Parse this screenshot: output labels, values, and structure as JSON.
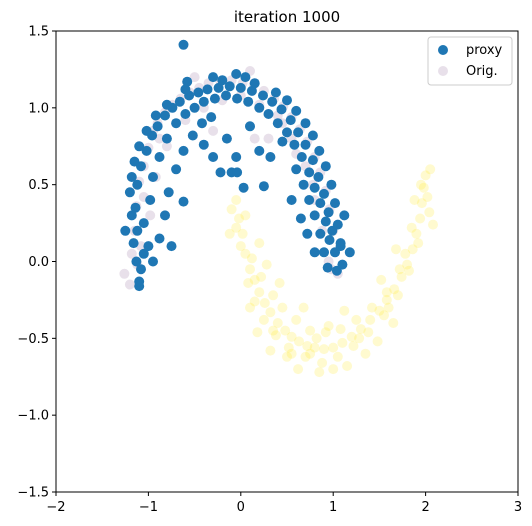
{
  "chart_data": {
    "type": "scatter",
    "title": "iteration 1000",
    "xlabel": "",
    "ylabel": "",
    "xlim": [
      -2,
      3
    ],
    "ylim": [
      -1.5,
      1.5
    ],
    "x_ticks": [
      -2,
      -1,
      0,
      1,
      2,
      3
    ],
    "y_ticks": [
      -1.5,
      -1.0,
      -0.5,
      0.0,
      0.5,
      1.0,
      1.5
    ],
    "x_tick_labels": [
      "−2",
      "−1",
      "0",
      "1",
      "2",
      "3"
    ],
    "y_tick_labels": [
      "−1.5",
      "−1.0",
      "−0.5",
      "0.0",
      "0.5",
      "1.0",
      "1.5"
    ],
    "grid": false,
    "legend_position": "top-right",
    "series": [
      {
        "name": "Orig.",
        "color_upper": "#440154",
        "color_lower": "#fde725",
        "opacity": 0.12,
        "points": [
          [
            -1.26,
            -0.08
          ],
          [
            -1.18,
            0.05
          ],
          [
            -1.15,
            0.2
          ],
          [
            -1.13,
            0.36
          ],
          [
            -1.1,
            0.52
          ],
          [
            -1.05,
            0.62
          ],
          [
            -1.0,
            0.74
          ],
          [
            -0.95,
            0.85
          ],
          [
            -0.9,
            0.9
          ],
          [
            -0.82,
            0.97
          ],
          [
            -0.74,
            1.02
          ],
          [
            -0.65,
            1.06
          ],
          [
            -0.55,
            1.1
          ],
          [
            -0.45,
            1.13
          ],
          [
            -0.35,
            1.16
          ],
          [
            -0.22,
            1.17
          ],
          [
            -0.1,
            1.18
          ],
          [
            0.02,
            1.16
          ],
          [
            0.14,
            1.15
          ],
          [
            0.25,
            1.11
          ],
          [
            0.36,
            1.06
          ],
          [
            0.46,
            1.01
          ],
          [
            0.55,
            0.94
          ],
          [
            0.64,
            0.86
          ],
          [
            0.72,
            0.78
          ],
          [
            0.8,
            0.68
          ],
          [
            0.86,
            0.58
          ],
          [
            0.92,
            0.46
          ],
          [
            0.96,
            0.34
          ],
          [
            1.0,
            0.2
          ],
          [
            1.02,
            0.06
          ],
          [
            1.05,
            -0.08
          ],
          [
            -1.2,
            -0.15
          ],
          [
            -1.08,
            0.1
          ],
          [
            -0.98,
            0.3
          ],
          [
            -0.92,
            0.55
          ],
          [
            -0.8,
            0.75
          ],
          [
            -0.6,
            0.92
          ],
          [
            -0.4,
            1.0
          ],
          [
            -0.2,
            1.05
          ],
          [
            0.0,
            1.08
          ],
          [
            0.2,
            1.02
          ],
          [
            0.4,
            0.95
          ],
          [
            0.55,
            0.8
          ],
          [
            0.7,
            0.62
          ],
          [
            0.8,
            0.4
          ],
          [
            0.88,
            0.2
          ],
          [
            0.95,
            0.0
          ],
          [
            -1.05,
            0.42
          ],
          [
            -0.88,
            0.8
          ],
          [
            -0.5,
            1.2
          ],
          [
            0.1,
            1.24
          ],
          [
            0.45,
            0.9
          ],
          [
            0.78,
            0.5
          ],
          [
            0.98,
            -0.05
          ],
          [
            -1.12,
            -0.02
          ],
          [
            0.3,
            0.8
          ],
          [
            0.15,
            0.8
          ],
          [
            -0.3,
            0.85
          ],
          [
            0.6,
            0.7
          ]
        ],
        "points_lower": [
          [
            -0.05,
            0.4
          ],
          [
            -0.02,
            0.28
          ],
          [
            0.02,
            0.18
          ],
          [
            0.05,
            0.05
          ],
          [
            0.1,
            -0.05
          ],
          [
            0.15,
            -0.12
          ],
          [
            0.2,
            -0.2
          ],
          [
            0.26,
            -0.27
          ],
          [
            0.32,
            -0.33
          ],
          [
            0.4,
            -0.4
          ],
          [
            0.48,
            -0.45
          ],
          [
            0.55,
            -0.49
          ],
          [
            0.63,
            -0.52
          ],
          [
            0.72,
            -0.55
          ],
          [
            0.8,
            -0.56
          ],
          [
            0.9,
            -0.57
          ],
          [
            1.0,
            -0.56
          ],
          [
            1.1,
            -0.53
          ],
          [
            1.2,
            -0.49
          ],
          [
            1.3,
            -0.44
          ],
          [
            1.4,
            -0.38
          ],
          [
            1.5,
            -0.32
          ],
          [
            1.58,
            -0.25
          ],
          [
            1.66,
            -0.18
          ],
          [
            1.74,
            -0.1
          ],
          [
            1.8,
            -0.02
          ],
          [
            1.86,
            0.08
          ],
          [
            1.9,
            0.18
          ],
          [
            1.94,
            0.28
          ],
          [
            1.96,
            0.38
          ],
          [
            1.98,
            0.48
          ],
          [
            2.0,
            0.56
          ],
          [
            2.02,
            0.42
          ],
          [
            2.04,
            0.32
          ],
          [
            1.92,
            0.12
          ],
          [
            1.82,
            -0.06
          ],
          [
            1.7,
            -0.22
          ],
          [
            1.55,
            -0.35
          ],
          [
            1.38,
            -0.46
          ],
          [
            1.22,
            -0.55
          ],
          [
            1.05,
            -0.62
          ],
          [
            0.88,
            -0.66
          ],
          [
            0.7,
            -0.62
          ],
          [
            0.52,
            -0.56
          ],
          [
            0.38,
            -0.48
          ],
          [
            0.25,
            -0.38
          ],
          [
            0.15,
            -0.26
          ],
          [
            0.08,
            -0.14
          ],
          [
            0.0,
            0.1
          ],
          [
            -0.1,
            0.34
          ],
          [
            -0.05,
            0.22
          ],
          [
            0.12,
            0.02
          ],
          [
            0.22,
            -0.1
          ],
          [
            0.35,
            -0.22
          ],
          [
            0.45,
            -0.3
          ],
          [
            0.6,
            -0.38
          ],
          [
            0.75,
            -0.45
          ],
          [
            0.92,
            -0.46
          ],
          [
            1.08,
            -0.44
          ],
          [
            1.25,
            -0.38
          ],
          [
            1.42,
            -0.3
          ],
          [
            1.58,
            -0.2
          ],
          [
            1.72,
            -0.05
          ],
          [
            1.85,
            0.22
          ],
          [
            1.95,
            0.5
          ],
          [
            2.05,
            0.6
          ],
          [
            2.08,
            0.24
          ],
          [
            0.85,
            -0.72
          ],
          [
            0.62,
            -0.7
          ],
          [
            0.32,
            -0.58
          ],
          [
            0.18,
            -0.46
          ],
          [
            1.15,
            -0.68
          ],
          [
            1.48,
            -0.52
          ],
          [
            1.65,
            -0.4
          ],
          [
            -0.12,
            0.18
          ],
          [
            0.05,
            0.3
          ],
          [
            0.95,
            -0.42
          ],
          [
            0.5,
            -0.62
          ],
          [
            1.35,
            -0.6
          ],
          [
            1.78,
            0.05
          ],
          [
            0.28,
            -0.02
          ],
          [
            0.42,
            -0.14
          ],
          [
            0.68,
            -0.3
          ],
          [
            1.12,
            -0.32
          ],
          [
            1.52,
            -0.12
          ],
          [
            1.68,
            0.08
          ],
          [
            1.88,
            0.4
          ],
          [
            0.2,
            0.12
          ],
          [
            0.75,
            -0.6
          ],
          [
            1.0,
            -0.7
          ],
          [
            1.28,
            -0.5
          ],
          [
            1.6,
            -0.3
          ],
          [
            0.1,
            -0.3
          ],
          [
            0.35,
            -0.45
          ],
          [
            0.55,
            -0.6
          ],
          [
            0.82,
            -0.5
          ]
        ]
      },
      {
        "name": "proxy",
        "color": "#1f77b4",
        "points": [
          [
            -0.62,
            1.41
          ],
          [
            -0.58,
            1.17
          ],
          [
            -1.1,
            -0.16
          ],
          [
            -1.1,
            -0.13
          ],
          [
            -0.62,
            0.39
          ],
          [
            -0.75,
            0.1
          ],
          [
            -1.05,
            0.05
          ],
          [
            -1.12,
            0.2
          ],
          [
            -1.14,
            0.35
          ],
          [
            -1.12,
            0.5
          ],
          [
            -1.08,
            0.62
          ],
          [
            -1.02,
            0.72
          ],
          [
            -0.96,
            0.82
          ],
          [
            -0.9,
            0.88
          ],
          [
            -0.82,
            0.95
          ],
          [
            -0.74,
            1.0
          ],
          [
            -0.66,
            1.04
          ],
          [
            -0.56,
            1.08
          ],
          [
            -0.46,
            1.1
          ],
          [
            -0.36,
            1.12
          ],
          [
            -0.24,
            1.13
          ],
          [
            -0.12,
            1.14
          ],
          [
            0.0,
            1.13
          ],
          [
            0.12,
            1.11
          ],
          [
            0.24,
            1.08
          ],
          [
            0.34,
            1.04
          ],
          [
            0.44,
            0.99
          ],
          [
            0.54,
            0.92
          ],
          [
            0.62,
            0.84
          ],
          [
            0.7,
            0.76
          ],
          [
            0.78,
            0.66
          ],
          [
            0.84,
            0.55
          ],
          [
            0.9,
            0.44
          ],
          [
            0.95,
            0.32
          ],
          [
            0.99,
            0.2
          ],
          [
            1.02,
            0.06
          ],
          [
            1.04,
            -0.06
          ],
          [
            1.08,
            0.1
          ],
          [
            1.12,
            0.3
          ],
          [
            1.18,
            0.06
          ],
          [
            -1.05,
            0.25
          ],
          [
            -0.98,
            0.4
          ],
          [
            -0.95,
            0.55
          ],
          [
            -0.88,
            0.68
          ],
          [
            -0.8,
            0.8
          ],
          [
            -0.7,
            0.9
          ],
          [
            -0.6,
            0.96
          ],
          [
            -0.5,
            1.0
          ],
          [
            -0.4,
            1.04
          ],
          [
            -0.28,
            1.06
          ],
          [
            -0.16,
            1.08
          ],
          [
            -0.04,
            1.06
          ],
          [
            0.08,
            1.04
          ],
          [
            0.2,
            1.0
          ],
          [
            0.3,
            0.96
          ],
          [
            0.4,
            0.9
          ],
          [
            0.5,
            0.84
          ],
          [
            0.58,
            0.76
          ],
          [
            0.66,
            0.68
          ],
          [
            0.74,
            0.58
          ],
          [
            0.8,
            0.48
          ],
          [
            0.86,
            0.38
          ],
          [
            0.92,
            0.26
          ],
          [
            0.96,
            0.14
          ],
          [
            -0.22,
            0.58
          ],
          [
            -0.1,
            0.58
          ],
          [
            0.03,
            0.48
          ],
          [
            0.25,
            0.49
          ],
          [
            0.32,
            0.68
          ],
          [
            0.2,
            0.72
          ],
          [
            -0.05,
            0.68
          ],
          [
            -0.3,
            0.68
          ],
          [
            -0.4,
            0.76
          ],
          [
            -0.15,
            0.8
          ],
          [
            0.1,
            0.88
          ],
          [
            0.45,
            0.78
          ],
          [
            -1.0,
            0.1
          ],
          [
            -0.95,
            0.0
          ],
          [
            -0.88,
            0.15
          ],
          [
            -0.82,
            0.3
          ],
          [
            -0.78,
            0.45
          ],
          [
            -0.7,
            0.6
          ],
          [
            -0.62,
            0.72
          ],
          [
            -0.52,
            0.82
          ],
          [
            -0.42,
            0.9
          ],
          [
            -0.32,
            0.94
          ],
          [
            0.6,
            0.6
          ],
          [
            0.68,
            0.5
          ],
          [
            0.74,
            0.4
          ],
          [
            0.8,
            0.3
          ],
          [
            0.86,
            0.18
          ],
          [
            0.9,
            0.06
          ],
          [
            0.94,
            -0.04
          ],
          [
            -0.04,
            0.58
          ],
          [
            -0.2,
            1.18
          ],
          [
            -0.05,
            1.22
          ],
          [
            0.05,
            1.2
          ],
          [
            0.15,
            1.16
          ],
          [
            -0.3,
            1.2
          ],
          [
            -0.6,
            1.12
          ],
          [
            -0.8,
            1.02
          ],
          [
            -0.92,
            0.95
          ],
          [
            -1.02,
            0.85
          ],
          [
            -1.1,
            0.75
          ],
          [
            -1.15,
            0.65
          ],
          [
            -1.18,
            0.55
          ],
          [
            -1.2,
            0.45
          ],
          [
            -1.18,
            0.3
          ],
          [
            -1.16,
            0.12
          ],
          [
            -1.13,
            0.0
          ],
          [
            -1.25,
            0.2
          ],
          [
            -1.08,
            -0.05
          ],
          [
            0.38,
            1.1
          ],
          [
            0.5,
            1.05
          ],
          [
            0.6,
            0.98
          ],
          [
            0.7,
            0.9
          ],
          [
            0.78,
            0.82
          ],
          [
            0.85,
            0.72
          ],
          [
            0.92,
            0.62
          ],
          [
            0.98,
            0.5
          ],
          [
            1.02,
            0.38
          ],
          [
            1.05,
            0.24
          ],
          [
            1.08,
            0.12
          ],
          [
            1.1,
            -0.02
          ],
          [
            0.8,
            0.06
          ],
          [
            0.72,
            0.18
          ],
          [
            0.65,
            0.28
          ],
          [
            0.55,
            0.4
          ]
        ]
      }
    ]
  }
}
